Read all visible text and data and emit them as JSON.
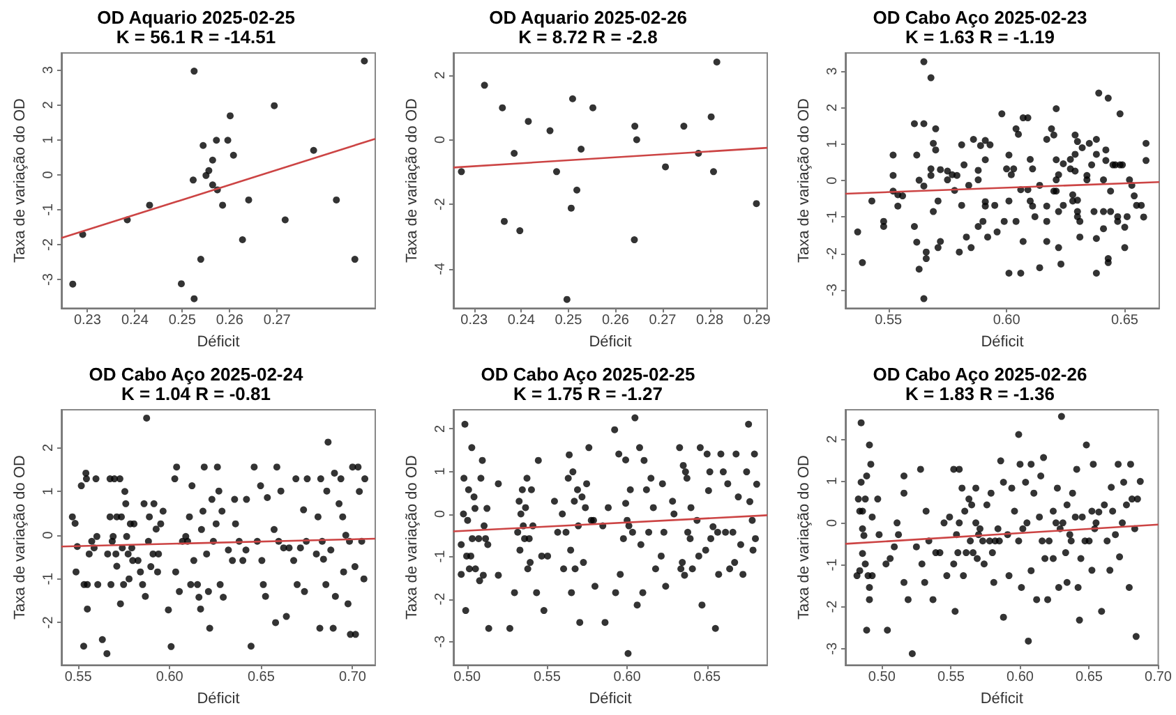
{
  "chart_data": [
    {
      "type": "scatter",
      "title": "OD Aquario 2025-02-25",
      "subtitle": "K = 56.1 R = -14.51",
      "xlabel": "Déficit",
      "ylabel": "Taxa de variação do OD",
      "marker": "circle",
      "xlim": [
        0.2245,
        0.2907
      ],
      "xticks": [
        0.23,
        0.24,
        0.25,
        0.26,
        0.27
      ],
      "ylim": [
        -3.82,
        3.49
      ],
      "yticks": [
        -3,
        -2,
        -1,
        0,
        1,
        2,
        3
      ],
      "series": [
        {
          "type": "scatter",
          "color": "#000000",
          "x": [
            0.2269,
            0.229,
            0.2384,
            0.2431,
            0.2498,
            0.2525,
            0.2523,
            0.2525,
            0.2539,
            0.2544,
            0.255,
            0.2556,
            0.2564,
            0.2564,
            0.2572,
            0.2574,
            0.2585,
            0.2596,
            0.2601,
            0.2608,
            0.2627,
            0.264,
            0.2694,
            0.2717,
            0.2777,
            0.2825,
            0.2864,
            0.2884
          ],
          "values": [
            -3.13,
            -1.71,
            -1.29,
            -0.87,
            -3.12,
            2.97,
            -0.15,
            -3.55,
            -2.42,
            0.84,
            -0.02,
            0.12,
            0.42,
            -0.29,
            0.99,
            -0.43,
            -0.87,
            0.99,
            1.69,
            0.56,
            -1.86,
            -0.72,
            1.98,
            -1.29,
            0.7,
            -0.72,
            -2.42,
            3.26
          ]
        },
        {
          "type": "line",
          "marker": "none",
          "color": "#cc4444",
          "x": [
            0.2245,
            0.2907
          ],
          "values": [
            -1.81,
            1.03
          ]
        }
      ]
    },
    {
      "type": "scatter",
      "title": "OD Aquario 2025-02-26",
      "subtitle": "K = 8.72 R = -2.8",
      "xlabel": "Déficit",
      "ylabel": "Taxa de variação do OD",
      "marker": "circle",
      "xlim": [
        0.2256,
        0.2922
      ],
      "xticks": [
        0.23,
        0.24,
        0.25,
        0.26,
        0.27,
        0.28,
        0.29
      ],
      "ylim": [
        -5.22,
        2.69
      ],
      "yticks": [
        -4,
        -2,
        0,
        2
      ],
      "series": [
        {
          "type": "scatter",
          "color": "#000000",
          "x": [
            0.2273,
            0.2322,
            0.236,
            0.2364,
            0.2385,
            0.2397,
            0.2415,
            0.2461,
            0.2475,
            0.2497,
            0.2506,
            0.2509,
            0.2518,
            0.2527,
            0.2552,
            0.264,
            0.2641,
            0.2645,
            0.2706,
            0.2745,
            0.2776,
            0.2803,
            0.2808,
            0.2815,
            0.2899
          ],
          "values": [
            -0.99,
            1.69,
            0.99,
            -2.53,
            -0.42,
            -2.82,
            0.57,
            0.28,
            -0.99,
            -4.95,
            -2.12,
            1.27,
            -1.56,
            -0.29,
            0.99,
            -3.1,
            0.42,
            0.0,
            -0.84,
            0.42,
            -0.42,
            0.71,
            -0.99,
            2.41,
            -1.98
          ]
        },
        {
          "type": "line",
          "marker": "none",
          "color": "#cc4444",
          "x": [
            0.2256,
            0.2922
          ],
          "values": [
            -0.86,
            -0.25
          ]
        }
      ]
    },
    {
      "type": "scatter",
      "title": "OD Cabo Aço 2025-02-23",
      "subtitle": "K = 1.63 R = -1.19",
      "xlabel": "Déficit",
      "ylabel": "Taxa de variação do OD",
      "marker": "circle",
      "xlim": [
        0.5318,
        0.6646
      ],
      "xticks": [
        {
          "value": 0.55,
          "label": "0.55"
        },
        {
          "value": 0.6,
          "label": "0.60"
        },
        {
          "value": 0.65,
          "label": "0.65"
        }
      ],
      "ylim": [
        -3.5,
        3.5
      ],
      "yticks": [
        -3,
        -2,
        -1,
        0,
        1,
        2,
        3
      ],
      "series": [
        {
          "type": "scatter",
          "color": "#000000",
          "x": [
            0.537,
            0.539,
            0.543,
            0.548,
            0.548,
            0.552,
            0.552,
            0.552,
            0.554,
            0.554,
            0.556,
            0.561,
            0.561,
            0.562,
            0.562,
            0.563,
            0.563,
            0.565,
            0.565,
            0.565,
            0.565,
            0.566,
            0.566,
            0.568,
            0.568,
            0.568,
            0.569,
            0.569,
            0.57,
            0.57,
            0.571,
            0.571,
            0.572,
            0.572,
            0.575,
            0.575,
            0.577,
            0.578,
            0.579,
            0.58,
            0.581,
            0.581,
            0.582,
            0.583,
            0.584,
            0.585,
            0.586,
            0.588,
            0.588,
            0.588,
            0.589,
            0.59,
            0.591,
            0.591,
            0.591,
            0.591,
            0.592,
            0.593,
            0.595,
            0.596,
            0.598,
            0.599,
            0.6,
            0.601,
            0.601,
            0.601,
            0.602,
            0.603,
            0.604,
            0.605,
            0.604,
            0.606,
            0.606,
            0.607,
            0.607,
            0.609,
            0.609,
            0.61,
            0.61,
            0.611,
            0.611,
            0.612,
            0.614,
            0.614,
            0.617,
            0.617,
            0.617,
            0.617,
            0.619,
            0.62,
            0.62,
            0.621,
            0.621,
            0.621,
            0.621,
            0.622,
            0.622,
            0.622,
            0.623,
            0.624,
            0.624,
            0.627,
            0.627,
            0.628,
            0.628,
            0.629,
            0.629,
            0.629,
            0.63,
            0.63,
            0.63,
            0.63,
            0.631,
            0.631,
            0.632,
            0.634,
            0.634,
            0.635,
            0.636,
            0.637,
            0.638,
            0.638,
            0.638,
            0.638,
            0.639,
            0.641,
            0.641,
            0.641,
            0.642,
            0.642,
            0.643,
            0.643,
            0.643,
            0.644,
            0.644,
            0.645,
            0.646,
            0.647,
            0.647,
            0.648,
            0.648,
            0.649,
            0.65,
            0.65,
            0.651,
            0.652,
            0.653,
            0.654,
            0.655,
            0.657,
            0.658,
            0.659,
            0.659
          ],
          "values": [
            -1.41,
            -2.25,
            -0.56,
            -1.12,
            -1.26,
            0.7,
            0.14,
            -0.29,
            -0.39,
            -0.7,
            -0.42,
            -1.26,
            1.56,
            0.7,
            -1.69,
            -2.43,
            0.01,
            -3.24,
            3.26,
            1.56,
            -0.15,
            -1.96,
            -2.14,
            2.82,
            0.32,
            0.14,
            -0.85,
            1.02,
            1.42,
            0.84,
            -1.84,
            -0.56,
            -1.67,
            0.3,
            0.26,
            0.02,
            0.16,
            -0.27,
            0.14,
            -1.96,
            -0.68,
            0.98,
            0.43,
            -1.55,
            -0.13,
            -1.84,
            1.13,
            -1.26,
            0.28,
            0.02,
            0.96,
            -1.12,
            -0.58,
            -0.7,
            0.57,
            1.1,
            -1.55,
            0.98,
            -0.68,
            -1.41,
            1.83,
            -1.12,
            0.32,
            0.7,
            -0.56,
            -2.54,
            0.16,
            0.32,
            1.42,
            1.27,
            -1.12,
            -2.54,
            -0.25,
            -1.67,
            1.72,
            -0.25,
            1.72,
            0.58,
            -0.56,
            0.32,
            -0.7,
            -0.99,
            -2.39,
            -0.13,
            -0.7,
            1.13,
            -1.12,
            -1.67,
            1.42,
            -0.29,
            1.25,
            1.97,
            0.57,
            0.02,
            -0.29,
            -0.85,
            -1.84,
            0.16,
            -2.29,
            0.46,
            -0.68,
            0.58,
            0.32,
            -0.39,
            -0.56,
            0.26,
            0.72,
            1.25,
            -0.54,
            1.07,
            -0.85,
            -0.99,
            -1.12,
            -1.55,
            0.9,
            0.14,
            0.02,
            1.02,
            0.43,
            -0.85,
            -2.54,
            -1.59,
            1.13,
            0.72,
            2.4,
            0.02,
            -0.85,
            -1.32,
            0.55,
            0.84,
            2.26,
            -2.14,
            -2.25,
            -0.29,
            -0.85,
            0.43,
            0.43,
            -1.12,
            -0.99,
            0.43,
            1.83,
            0.43,
            -1.28,
            -1.84,
            -0.99,
            0.02,
            -0.13,
            -0.42,
            -0.68,
            -0.68,
            -1.0,
            1.02,
            0.55
          ]
        },
        {
          "type": "line",
          "marker": "none",
          "color": "#cc4444",
          "x": [
            0.5318,
            0.6646
          ],
          "values": [
            -0.36,
            -0.04
          ]
        }
      ]
    },
    {
      "type": "scatter",
      "title": "OD Cabo Aço 2025-02-24",
      "subtitle": "K = 1.04 R = -0.81",
      "xlabel": "Déficit",
      "ylabel": "Taxa de variação do OD",
      "marker": "circle",
      "xlim": [
        0.5408,
        0.7124
      ],
      "xticks": [
        {
          "value": 0.55,
          "label": "0.55"
        },
        {
          "value": 0.6,
          "label": "0.60"
        },
        {
          "value": 0.65,
          "label": "0.65"
        },
        {
          "value": 0.7,
          "label": "0.70"
        }
      ],
      "ylim": [
        -2.97,
        2.87
      ],
      "yticks": [
        -2,
        -1,
        0,
        1,
        2
      ],
      "series": [
        {
          "type": "scatter",
          "color": "#000000",
          "x": [
            0.5468,
            0.5483,
            0.5488,
            0.5495,
            0.5517,
            0.553,
            0.5542,
            0.5545,
            0.555,
            0.555,
            0.5532,
            0.556,
            0.5574,
            0.5587,
            0.5597,
            0.5602,
            0.5607,
            0.5632,
            0.5657,
            0.5661,
            0.5674,
            0.5674,
            0.5679,
            0.5686,
            0.5691,
            0.5698,
            0.5706,
            0.5711,
            0.5711,
            0.5728,
            0.5731,
            0.5736,
            0.5741,
            0.5748,
            0.5755,
            0.576,
            0.5765,
            0.5773,
            0.5778,
            0.5785,
            0.5793,
            0.5798,
            0.5805,
            0.5827,
            0.584,
            0.5852,
            0.586,
            0.5867,
            0.5874,
            0.5884,
            0.5889,
            0.5897,
            0.5909,
            0.5914,
            0.5926,
            0.5934,
            0.5939,
            0.5951,
            0.5964,
            0.5993,
            0.6008,
            0.6028,
            0.6033,
            0.6038,
            0.6053,
            0.607,
            0.6088,
            0.6098,
            0.6108,
            0.6115,
            0.6122,
            0.6132,
            0.6152,
            0.616,
            0.6169,
            0.6174,
            0.6182,
            0.6189,
            0.6202,
            0.6212,
            0.6219,
            0.6231,
            0.6239,
            0.6254,
            0.6261,
            0.6269,
            0.6276,
            0.6286,
            0.6293,
            0.6321,
            0.6343,
            0.6355,
            0.636,
            0.638,
            0.64,
            0.6417,
            0.642,
            0.6445,
            0.6462,
            0.6479,
            0.6497,
            0.6504,
            0.6512,
            0.6524,
            0.6534,
            0.6571,
            0.6579,
            0.6586,
            0.6596,
            0.6608,
            0.6623,
            0.6638,
            0.6653,
            0.6678,
            0.669,
            0.6697,
            0.6715,
            0.6732,
            0.6737,
            0.6747,
            0.6752,
            0.6802,
            0.6811,
            0.6821,
            0.6826,
            0.6834,
            0.6841,
            0.6854,
            0.6859,
            0.6866,
            0.6881,
            0.6894,
            0.6901,
            0.6906,
            0.6926,
            0.6936,
            0.6946,
            0.6951,
            0.6963,
            0.6975,
            0.6983,
            0.6988,
            0.7,
            0.7013,
            0.7016,
            0.703,
            0.7037,
            0.705,
            0.7062,
            0.7067
          ],
          "values": [
            0.42,
            0.27,
            -0.84,
            -0.26,
            1.13,
            -2.54,
            1.42,
            1.29,
            -1.69,
            -1.13,
            -1.13,
            -0.43,
            -0.14,
            -0.29,
            1.29,
            -0.03,
            -1.13,
            -2.39,
            -2.71,
            -0.43,
            0.42,
            1.29,
            -1.13,
            -0.14,
            -0.03,
            1.29,
            -0.43,
            0.42,
            -0.71,
            1.29,
            -1.57,
            0.42,
            -0.29,
            -1.13,
            1.0,
            0.72,
            -0.03,
            -0.43,
            -1.0,
            0.26,
            -0.29,
            -0.58,
            0.26,
            -0.58,
            -0.84,
            -1.13,
            0.72,
            -1.4,
            2.68,
            -0.14,
            0.42,
            -0.72,
            -0.43,
            0.72,
            0.14,
            -0.84,
            -0.43,
            0.26,
            0.55,
            -1.71,
            -2.55,
            1.29,
            -0.84,
            1.56,
            -1.29,
            -0.14,
            -0.03,
            -0.14,
            0.42,
            -1.13,
            1.13,
            -0.58,
            -1.13,
            -1.42,
            -1.69,
            0.13,
            0.55,
            1.56,
            -0.43,
            -1.29,
            -2.13,
            0.82,
            -0.14,
            0.26,
            1.56,
            1.01,
            -1.13,
            0.55,
            -1.42,
            -0.34,
            -0.58,
            0.82,
            0.26,
            -0.14,
            -0.58,
            -0.34,
            0.82,
            -2.54,
            1.56,
            -0.14,
            1.13,
            -0.58,
            -1.13,
            -1.4,
            0.86,
            0.13,
            -2.0,
            1.56,
            -0.14,
            1.01,
            -0.29,
            -1.86,
            -0.29,
            -0.58,
            1.29,
            -1.13,
            -0.29,
            0.58,
            -1.29,
            -0.14,
            1.29,
            -0.43,
            0.42,
            -2.13,
            1.29,
            -0.14,
            -0.55,
            -1.13,
            1.01,
            2.13,
            -0.34,
            -2.13,
            1.42,
            -1.4,
            0.72,
            1.29,
            0.42,
            -0.84,
            0.0,
            -1.57,
            -0.14,
            -2.27,
            1.56,
            -0.72,
            -2.27,
            1.56,
            1.0,
            -0.14,
            -1.0,
            1.29
          ]
        },
        {
          "type": "line",
          "marker": "none",
          "color": "#cc4444",
          "x": [
            0.5408,
            0.7124
          ],
          "values": [
            -0.26,
            -0.08
          ]
        }
      ]
    },
    {
      "type": "scatter",
      "title": "OD Cabo Aço 2025-02-25",
      "subtitle": "K = 1.75 R = -1.27",
      "xlabel": "Déficit",
      "ylabel": "Taxa de variação do OD",
      "marker": "circle",
      "xlim": [
        0.4914,
        0.6876
      ],
      "xticks": [
        {
          "value": 0.5,
          "label": "0.50"
        },
        {
          "value": 0.55,
          "label": "0.55"
        },
        {
          "value": 0.6,
          "label": "0.60"
        },
        {
          "value": 0.65,
          "label": "0.65"
        }
      ],
      "ylim": [
        -3.55,
        2.45
      ],
      "yticks": [
        -3,
        -2,
        -1,
        0,
        1,
        2
      ],
      "series": [
        {
          "type": "scatter",
          "color": "#000000",
          "x": [
            0.4963,
            0.4963,
            0.4977,
            0.498,
            0.4986,
            0.4991,
            0.4997,
            0.5003,
            0.5009,
            0.5014,
            0.5023,
            0.5029,
            0.5032,
            0.5043,
            0.5049,
            0.5052,
            0.5072,
            0.5078,
            0.5086,
            0.5095,
            0.5101,
            0.5106,
            0.5115,
            0.5124,
            0.5129,
            0.5135,
            0.5195,
            0.5195,
            0.5267,
            0.5296,
            0.5316,
            0.5325,
            0.533,
            0.5336,
            0.5345,
            0.5351,
            0.5359,
            0.5365,
            0.5374,
            0.5379,
            0.5388,
            0.5394,
            0.5402,
            0.5411,
            0.5434,
            0.5445,
            0.5466,
            0.548,
            0.5503,
            0.5546,
            0.5566,
            0.5595,
            0.5603,
            0.5618,
            0.5632,
            0.5638,
            0.5647,
            0.5652,
            0.5661,
            0.567,
            0.5675,
            0.569,
            0.5695,
            0.5704,
            0.5718,
            0.5727,
            0.5739,
            0.5747,
            0.5761,
            0.5776,
            0.579,
            0.5799,
            0.5848,
            0.5862,
            0.5882,
            0.5922,
            0.5928,
            0.5948,
            0.5957,
            0.5977,
            0.5991,
            0.5991,
            0.6,
            0.6006,
            0.6011,
            0.602,
            0.6034,
            0.6049,
            0.6063,
            0.6078,
            0.6086,
            0.6098,
            0.6106,
            0.6121,
            0.6135,
            0.6149,
            0.6164,
            0.6178,
            0.6213,
            0.6221,
            0.623,
            0.6241,
            0.6284,
            0.6293,
            0.6328,
            0.6336,
            0.6345,
            0.6351,
            0.6359,
            0.6365,
            0.6374,
            0.6379,
            0.6394,
            0.6399,
            0.6408,
            0.6437,
            0.6448,
            0.6457,
            0.6468,
            0.6491,
            0.65,
            0.6509,
            0.6517,
            0.6523,
            0.6537,
            0.6552,
            0.6566,
            0.6572,
            0.6586,
            0.6601,
            0.6615,
            0.6629,
            0.6641,
            0.6661,
            0.6672,
            0.6681,
            0.6695,
            0.671,
            0.6724,
            0.6747,
            0.6759,
            0.6767,
            0.6782,
            0.6787,
            0.6796,
            0.6802,
            0.681
          ],
          "values": [
            -1.42,
            -0.72,
            0.0,
            0.84,
            2.11,
            -2.27,
            -0.99,
            -0.15,
            0.57,
            -1.29,
            -0.99,
            1.56,
            -0.58,
            0.4,
            0.13,
            -1.29,
            -0.58,
            -1.57,
            0.84,
            1.26,
            -1.44,
            -0.28,
            -0.58,
            0.13,
            -0.72,
            -2.69,
            0.71,
            -1.44,
            -2.69,
            -1.85,
            -0.43,
            0.3,
            -0.85,
            0.0,
            0.57,
            -0.28,
            -0.58,
            0.15,
            0.84,
            -1.29,
            -0.58,
            -1.14,
            0.57,
            -0.28,
            -1.85,
            1.26,
            -0.99,
            -2.27,
            -0.99,
            0.3,
            -0.43,
            0.0,
            -1.29,
            -0.43,
            0.84,
            1.39,
            -0.85,
            -1.85,
            0.99,
            0.3,
            -1.29,
            0.57,
            -0.28,
            -2.55,
            0.4,
            -1.14,
            0.15,
            0.71,
            1.56,
            -0.15,
            -0.15,
            -1.7,
            -0.28,
            -2.55,
            0.15,
            1.98,
            -1.85,
            1.41,
            -1.42,
            -0.58,
            1.27,
            0.25,
            -0.15,
            -3.28,
            -0.28,
            0.57,
            -0.43,
            2.26,
            -2.14,
            1.56,
            -0.72,
            -1.85,
            1.26,
            0.57,
            -0.43,
            0.84,
            0.15,
            -1.29,
            -0.99,
            0.71,
            -0.43,
            -1.7,
            0.3,
            0.0,
            1.56,
            -1.29,
            -1.14,
            1.14,
            -1.44,
            0.99,
            0.84,
            -0.43,
            -0.58,
            0.15,
            -1.29,
            -0.15,
            -0.99,
            1.56,
            -2.14,
            -0.85,
            1.41,
            0.55,
            0.99,
            -0.58,
            -0.3,
            -2.69,
            -0.43,
            -1.42,
            1.41,
            0.99,
            -0.43,
            0.71,
            -1.29,
            -0.43,
            -1.14,
            1.41,
            0.4,
            -0.72,
            -1.42,
            0.99,
            2.11,
            0.29,
            -0.15,
            -0.85,
            1.41,
            -0.58,
            0.7
          ]
        },
        {
          "type": "line",
          "marker": "none",
          "color": "#cc4444",
          "x": [
            0.4914,
            0.6876
          ],
          "values": [
            -0.41,
            -0.03
          ]
        }
      ]
    },
    {
      "type": "scatter",
      "title": "OD Cabo Aço 2025-02-26",
      "subtitle": "K = 1.83 R = -1.36",
      "xlabel": "Déficit",
      "ylabel": "Taxa de variação do OD",
      "marker": "circle",
      "xlim": [
        0.4736,
        0.7
      ],
      "xticks": [
        {
          "value": 0.5,
          "label": "0.50"
        },
        {
          "value": 0.55,
          "label": "0.55"
        },
        {
          "value": 0.6,
          "label": "0.60"
        },
        {
          "value": 0.65,
          "label": "0.65"
        },
        {
          "value": 0.7,
          "label": "0.70"
        }
      ],
      "ylim": [
        -3.39,
        2.7
      ],
      "yticks": [
        -3,
        -2,
        -1,
        0,
        1,
        2
      ],
      "series": [
        {
          "type": "scatter",
          "color": "#000000",
          "x": [
            0.482,
            0.483,
            0.484,
            0.484,
            0.485,
            0.485,
            0.486,
            0.486,
            0.486,
            0.487,
            0.488,
            0.488,
            0.489,
            0.489,
            0.49,
            0.491,
            0.491,
            0.491,
            0.492,
            0.493,
            0.493,
            0.497,
            0.498,
            0.503,
            0.504,
            0.506,
            0.509,
            0.511,
            0.512,
            0.516,
            0.516,
            0.516,
            0.519,
            0.522,
            0.525,
            0.528,
            0.529,
            0.531,
            0.532,
            0.534,
            0.537,
            0.539,
            0.542,
            0.545,
            0.547,
            0.549,
            0.552,
            0.552,
            0.553,
            0.554,
            0.555,
            0.556,
            0.556,
            0.558,
            0.559,
            0.56,
            0.561,
            0.563,
            0.564,
            0.565,
            0.566,
            0.568,
            0.568,
            0.569,
            0.57,
            0.571,
            0.573,
            0.574,
            0.576,
            0.578,
            0.579,
            0.58,
            0.581,
            0.582,
            0.584,
            0.585,
            0.586,
            0.588,
            0.588,
            0.591,
            0.592,
            0.594,
            0.596,
            0.599,
            0.599,
            0.6,
            0.601,
            0.602,
            0.604,
            0.605,
            0.606,
            0.608,
            0.608,
            0.61,
            0.612,
            0.614,
            0.615,
            0.616,
            0.617,
            0.618,
            0.62,
            0.621,
            0.624,
            0.624,
            0.626,
            0.627,
            0.628,
            0.629,
            0.63,
            0.631,
            0.633,
            0.634,
            0.634,
            0.636,
            0.637,
            0.638,
            0.64,
            0.641,
            0.642,
            0.643,
            0.644,
            0.645,
            0.647,
            0.648,
            0.65,
            0.652,
            0.652,
            0.653,
            0.654,
            0.655,
            0.657,
            0.659,
            0.661,
            0.663,
            0.665,
            0.666,
            0.667,
            0.669,
            0.671,
            0.672,
            0.674,
            0.675,
            0.677,
            0.679,
            0.68,
            0.681,
            0.683,
            0.684,
            0.685,
            0.687
          ],
          "values": [
            -1.26,
            0.57,
            -1.14,
            0.28,
            2.39,
            0.97,
            -0.14,
            0.28,
            -0.73,
            -0.3,
            -0.98,
            0.57,
            1.12,
            -2.56,
            -1.26,
            -1.54,
            1.86,
            -1.83,
            1.4,
            -1.26,
            0.14,
            0.57,
            -0.28,
            -0.98,
            -2.56,
            -0.85,
            -0.57,
            0.0,
            -0.28,
            1.12,
            0.71,
            -1.42,
            -1.83,
            -3.12,
            -0.57,
            1.28,
            -0.98,
            -1.42,
            0.28,
            -0.43,
            -1.83,
            -0.71,
            -0.71,
            0.0,
            -1.26,
            0.14,
            -0.98,
            1.28,
            -2.11,
            -0.28,
            -0.71,
            1.28,
            0.0,
            0.83,
            -1.26,
            0.28,
            -0.71,
            0.57,
            -0.43,
            0.43,
            -0.71,
            0.83,
            0.0,
            -0.85,
            -0.28,
            -0.14,
            -0.43,
            -0.98,
            0.43,
            -0.43,
            0.71,
            -0.71,
            -1.42,
            -0.43,
            -0.14,
            -0.43,
            1.48,
            0.97,
            -2.25,
            -0.28,
            -1.26,
            0.83,
            0.28,
            -0.43,
            2.11,
            1.4,
            -1.54,
            -0.14,
            0.97,
            0.0,
            -2.82,
            1.4,
            -1.14,
            0.71,
            -1.83,
            0.14,
            1.12,
            -0.43,
            1.56,
            -0.85,
            -1.83,
            -0.43,
            0.28,
            -0.85,
            0.0,
            0.83,
            -1.54,
            -0.14,
            2.54,
            0.0,
            -0.71,
            -1.42,
            0.43,
            -0.28,
            -0.43,
            0.71,
            0.14,
            1.28,
            -1.54,
            -2.32,
            -0.85,
            0.14,
            -0.43,
            1.86,
            -0.43,
            -1.13,
            0.28,
            1.4,
            -0.14,
            0.0,
            0.26,
            -2.11,
            0.43,
            -0.43,
            -1.13,
            0.85,
            0.28,
            -0.28,
            1.4,
            -0.81,
            0.0,
            0.97,
            0.43,
            -1.54,
            1.4,
            0.57,
            -0.14,
            -2.71,
            0.57,
            0.99
          ]
        },
        {
          "type": "line",
          "marker": "none",
          "color": "#cc4444",
          "x": [
            0.4736,
            0.7
          ],
          "values": [
            -0.5,
            -0.04
          ]
        }
      ]
    }
  ]
}
